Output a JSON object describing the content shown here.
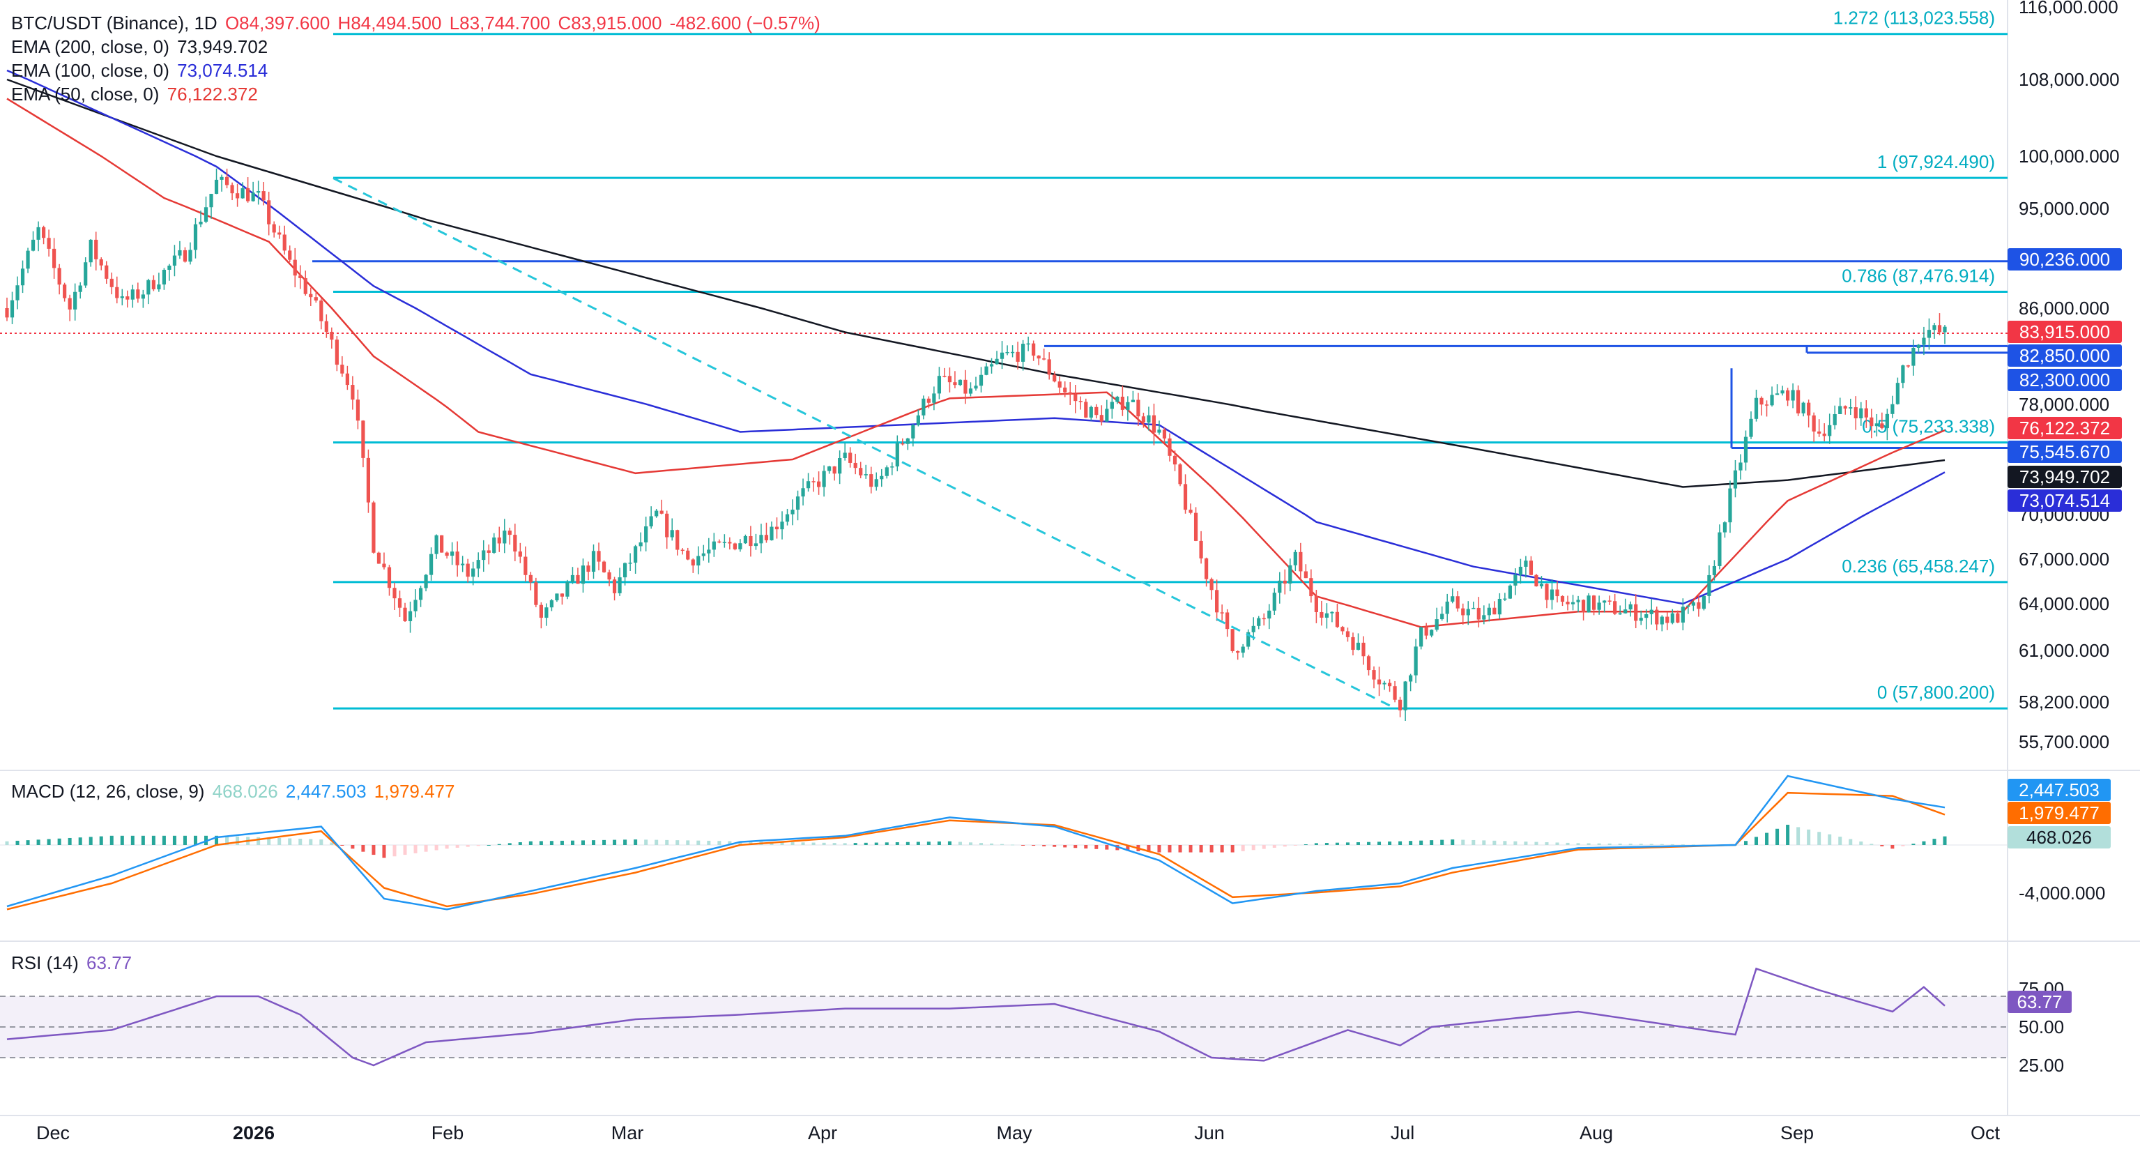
{
  "header": {
    "symbol": "BTC/USDT (Binance), 1D",
    "open": "O84,397.600",
    "high": "H84,494.500",
    "low": "L83,744.700",
    "close": "C83,915.000",
    "change": "-482.600 (−0.57%)"
  },
  "indicators": {
    "ema200": {
      "label": "EMA (200, close, 0)",
      "value": "73,949.702",
      "color": "#131722"
    },
    "ema100": {
      "label": "EMA (100, close, 0)",
      "value": "73,074.514",
      "color": "#2a2ed8"
    },
    "ema50": {
      "label": "EMA (50, close, 0)",
      "value": "76,122.372",
      "color": "#e53935"
    },
    "macd": {
      "label": "MACD (12, 26, close, 9)",
      "hist": "468.026",
      "macd": "2,447.503",
      "signal": "1,979.477"
    },
    "rsi": {
      "label": "RSI (14)",
      "value": "63.77"
    }
  },
  "colors": {
    "up": "#26a69a",
    "down": "#ef5350",
    "fib": "#00bcd4",
    "level": "#1e53e5",
    "ema200": "#131722",
    "ema100": "#2a2ed8",
    "ema50": "#e53935",
    "rsi": "#7e57c2"
  },
  "chart_data": {
    "type": "candlestick",
    "x_labels": [
      "Dec",
      "2026",
      "Feb",
      "Mar",
      "Apr",
      "May",
      "Jun",
      "Jul",
      "Aug",
      "Sep",
      "Oct"
    ],
    "y_ticks": [
      "116,000.000",
      "108,000.000",
      "100,000.000",
      "95,000.000",
      "86,000.000",
      "78,000.000",
      "70,000.000",
      "67,000.000",
      "64,000.000",
      "61,000.000",
      "58,200.000",
      "55,700.000"
    ],
    "fib_levels": [
      {
        "label": "1.272 (113,023.558)",
        "value": 113023.558
      },
      {
        "label": "1 (97,924.490)",
        "value": 97924.49
      },
      {
        "label": "0.786 (87,476.914)",
        "value": 87476.914
      },
      {
        "label": "0.5 (75,233.338)",
        "value": 75233.338
      },
      {
        "label": "0.236 (65,458.247)",
        "value": 65458.247
      },
      {
        "label": "0 (57,800.200)",
        "value": 57800.2
      }
    ],
    "price_tags": [
      {
        "text": "90,236.000",
        "value": 90236,
        "bg": "#1e53e5",
        "fg": "#ffffff"
      },
      {
        "text": "83,915.000",
        "value": 83915,
        "bg": "#f23645",
        "fg": "#ffffff"
      },
      {
        "text": "82,850.000",
        "value": 82850,
        "bg": "#1e53e5",
        "fg": "#ffffff"
      },
      {
        "text": "82,300.000",
        "value": 82300,
        "bg": "#1e53e5",
        "fg": "#ffffff"
      },
      {
        "text": "76,122.372",
        "value": 76122.372,
        "bg": "#f23645",
        "fg": "#ffffff"
      },
      {
        "text": "75,545.670",
        "value": 75545.67,
        "bg": "#1e53e5",
        "fg": "#ffffff"
      },
      {
        "text": "73,949.702",
        "value": 73949.702,
        "bg": "#131722",
        "fg": "#ffffff"
      },
      {
        "text": "73,074.514",
        "value": 73074.514,
        "bg": "#2a2ed8",
        "fg": "#ffffff"
      }
    ],
    "current_price": 83915,
    "candle_path": [
      [
        0,
        86000
      ],
      [
        6,
        93000
      ],
      [
        12,
        86000
      ],
      [
        16,
        91500
      ],
      [
        22,
        86500
      ],
      [
        26,
        87500
      ],
      [
        34,
        91000
      ],
      [
        40,
        97500
      ],
      [
        48,
        96000
      ],
      [
        54,
        90000
      ],
      [
        58,
        87000
      ],
      [
        66,
        79000
      ],
      [
        70,
        68000
      ],
      [
        76,
        63000
      ],
      [
        82,
        68000
      ],
      [
        88,
        66000
      ],
      [
        96,
        69000
      ],
      [
        102,
        63000
      ],
      [
        112,
        67000
      ],
      [
        116,
        65000
      ],
      [
        124,
        70000
      ],
      [
        130,
        67000
      ],
      [
        138,
        68000
      ],
      [
        146,
        69000
      ],
      [
        152,
        71500
      ],
      [
        160,
        74000
      ],
      [
        166,
        72000
      ],
      [
        172,
        76000
      ],
      [
        178,
        80000
      ],
      [
        184,
        79000
      ],
      [
        190,
        82000
      ],
      [
        196,
        82500
      ],
      [
        202,
        79000
      ],
      [
        208,
        77000
      ],
      [
        214,
        78500
      ],
      [
        220,
        76000
      ],
      [
        224,
        72000
      ],
      [
        228,
        67000
      ],
      [
        234,
        61000
      ],
      [
        240,
        63000
      ],
      [
        246,
        67000
      ],
      [
        250,
        64000
      ],
      [
        256,
        62000
      ],
      [
        262,
        59500
      ],
      [
        266,
        58200
      ],
      [
        270,
        62000
      ],
      [
        276,
        64000
      ],
      [
        282,
        63000
      ],
      [
        290,
        66500
      ],
      [
        296,
        64000
      ],
      [
        302,
        64000
      ],
      [
        310,
        63500
      ],
      [
        318,
        63000
      ],
      [
        324,
        64000
      ],
      [
        328,
        70000
      ],
      [
        334,
        78000
      ],
      [
        340,
        79000
      ],
      [
        346,
        76000
      ],
      [
        352,
        78000
      ],
      [
        358,
        76000
      ],
      [
        362,
        81000
      ],
      [
        366,
        84200
      ],
      [
        370,
        83915
      ]
    ],
    "ema200_path": [
      [
        0,
        108000
      ],
      [
        40,
        100000
      ],
      [
        80,
        94000
      ],
      [
        120,
        89000
      ],
      [
        160,
        84000
      ],
      [
        200,
        80500
      ],
      [
        240,
        77500
      ],
      [
        280,
        74800
      ],
      [
        320,
        72000
      ],
      [
        340,
        72500
      ],
      [
        370,
        73949.7
      ]
    ],
    "ema100_path": [
      [
        0,
        109000
      ],
      [
        40,
        99000
      ],
      [
        70,
        88000
      ],
      [
        100,
        80500
      ],
      [
        140,
        76000
      ],
      [
        200,
        77000
      ],
      [
        220,
        76500
      ],
      [
        250,
        69500
      ],
      [
        280,
        66500
      ],
      [
        320,
        64000
      ],
      [
        340,
        67000
      ],
      [
        370,
        73074.5
      ]
    ],
    "ema50_path": [
      [
        0,
        106000
      ],
      [
        30,
        96000
      ],
      [
        50,
        92000
      ],
      [
        70,
        82000
      ],
      [
        90,
        76000
      ],
      [
        120,
        73000
      ],
      [
        150,
        74000
      ],
      [
        180,
        78500
      ],
      [
        210,
        79000
      ],
      [
        230,
        72000
      ],
      [
        250,
        64500
      ],
      [
        270,
        62500
      ],
      [
        300,
        63500
      ],
      [
        320,
        63500
      ],
      [
        340,
        71000
      ],
      [
        360,
        74500
      ],
      [
        370,
        76122.4
      ]
    ],
    "macd_line": [
      [
        0,
        -4000
      ],
      [
        20,
        -2000
      ],
      [
        40,
        500
      ],
      [
        60,
        1200
      ],
      [
        72,
        -3500
      ],
      [
        84,
        -4200
      ],
      [
        100,
        -3000
      ],
      [
        120,
        -1500
      ],
      [
        140,
        200
      ],
      [
        160,
        600
      ],
      [
        180,
        1800
      ],
      [
        200,
        1200
      ],
      [
        220,
        -1000
      ],
      [
        234,
        -3800
      ],
      [
        250,
        -3000
      ],
      [
        266,
        -2500
      ],
      [
        276,
        -1500
      ],
      [
        300,
        -200
      ],
      [
        330,
        0
      ],
      [
        340,
        4500
      ],
      [
        360,
        3000
      ],
      [
        370,
        2447.5
      ]
    ],
    "macd_signal": [
      [
        0,
        -4200
      ],
      [
        20,
        -2500
      ],
      [
        40,
        0
      ],
      [
        60,
        900
      ],
      [
        72,
        -2800
      ],
      [
        84,
        -4000
      ],
      [
        100,
        -3200
      ],
      [
        120,
        -1800
      ],
      [
        140,
        0
      ],
      [
        160,
        500
      ],
      [
        180,
        1600
      ],
      [
        200,
        1300
      ],
      [
        220,
        -600
      ],
      [
        234,
        -3400
      ],
      [
        250,
        -3100
      ],
      [
        266,
        -2700
      ],
      [
        276,
        -1800
      ],
      [
        300,
        -300
      ],
      [
        330,
        0
      ],
      [
        340,
        3400
      ],
      [
        360,
        3200
      ],
      [
        370,
        1979.5
      ]
    ],
    "macd_hist_color_up": "#26a69a",
    "macd_hist_color_down": "#ef5350",
    "macd_ticks": [
      "-4,000.000"
    ],
    "rsi_ticks": [
      "75.00",
      "50.00",
      "25.00"
    ],
    "rsi_levels": [
      70,
      50,
      30
    ],
    "rsi_path": [
      [
        0,
        42
      ],
      [
        20,
        48
      ],
      [
        40,
        70
      ],
      [
        48,
        70
      ],
      [
        56,
        58
      ],
      [
        66,
        30
      ],
      [
        70,
        25
      ],
      [
        80,
        40
      ],
      [
        100,
        46
      ],
      [
        120,
        55
      ],
      [
        140,
        58
      ],
      [
        160,
        62
      ],
      [
        180,
        62
      ],
      [
        200,
        65
      ],
      [
        220,
        47
      ],
      [
        230,
        30
      ],
      [
        240,
        28
      ],
      [
        256,
        48
      ],
      [
        266,
        38
      ],
      [
        272,
        50
      ],
      [
        300,
        60
      ],
      [
        330,
        45
      ],
      [
        334,
        88
      ],
      [
        346,
        74
      ],
      [
        360,
        60
      ],
      [
        366,
        76
      ],
      [
        370,
        63.77
      ]
    ]
  }
}
